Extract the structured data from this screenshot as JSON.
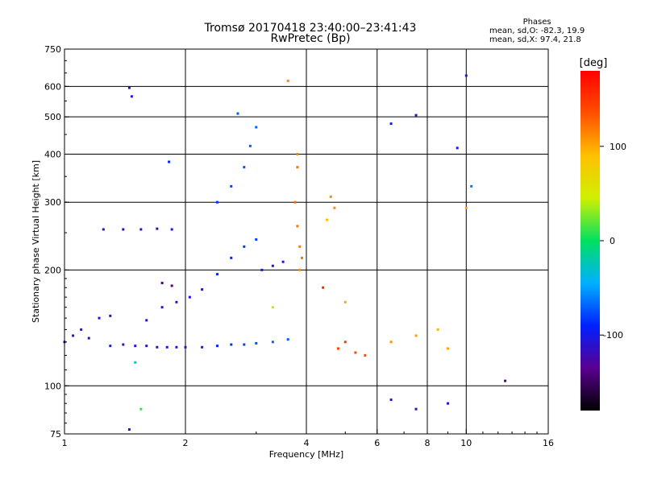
{
  "chart_data": {
    "type": "scatter",
    "title": "Tromsø 20170418 23:40:00–23:41:43",
    "subtitle": "RwPretec (Bp)",
    "xlabel": "Frequency [MHz]",
    "ylabel": "Stationary phase Virtual Height [km]",
    "x_scale": "log",
    "y_scale": "log",
    "xlim": [
      1,
      16
    ],
    "ylim": [
      75,
      750
    ],
    "x_ticks": [
      1,
      2,
      4,
      6,
      8,
      10,
      16
    ],
    "x_grid": [
      2,
      4,
      6,
      8,
      10
    ],
    "y_ticks": [
      75,
      100,
      200,
      300,
      400,
      500,
      600,
      750
    ],
    "grid": true,
    "stats": {
      "header": "Phases",
      "line_o": "mean, sd,O: -82.3, 19.9",
      "line_x": "mean, sd,X: 97.4, 21.8"
    },
    "colorbar": {
      "label": "[deg]",
      "range": [
        -180,
        180
      ],
      "ticks": [
        -100,
        0,
        100
      ],
      "colors": [
        "#000000",
        "#5a0090",
        "#0020ff",
        "#00b0ff",
        "#00e060",
        "#d0f000",
        "#ffc000",
        "#ff5000",
        "#ff0000"
      ]
    },
    "series": [
      {
        "points": [
          {
            "x": 1.0,
            "y": 130,
            "p": -110
          },
          {
            "x": 1.05,
            "y": 135,
            "p": -108
          },
          {
            "x": 1.1,
            "y": 140,
            "p": -100
          },
          {
            "x": 1.15,
            "y": 133,
            "p": -112
          },
          {
            "x": 1.22,
            "y": 150,
            "p": -105
          },
          {
            "x": 1.3,
            "y": 152,
            "p": -110
          },
          {
            "x": 1.3,
            "y": 127,
            "p": -100
          },
          {
            "x": 1.4,
            "y": 128,
            "p": -115
          },
          {
            "x": 1.5,
            "y": 127,
            "p": -108
          },
          {
            "x": 1.6,
            "y": 127,
            "p": -112
          },
          {
            "x": 1.7,
            "y": 126,
            "p": -105
          },
          {
            "x": 1.8,
            "y": 126,
            "p": -110
          },
          {
            "x": 1.9,
            "y": 126,
            "p": -100
          },
          {
            "x": 2.0,
            "y": 126,
            "p": -104
          },
          {
            "x": 2.2,
            "y": 126,
            "p": -95
          },
          {
            "x": 2.4,
            "y": 127,
            "p": -90
          },
          {
            "x": 2.6,
            "y": 128,
            "p": -85
          },
          {
            "x": 2.8,
            "y": 128,
            "p": -80
          },
          {
            "x": 3.0,
            "y": 129,
            "p": -75
          },
          {
            "x": 3.3,
            "y": 130,
            "p": -70
          },
          {
            "x": 3.6,
            "y": 132,
            "p": -72
          },
          {
            "x": 1.25,
            "y": 255,
            "p": -110
          },
          {
            "x": 1.4,
            "y": 255,
            "p": -108
          },
          {
            "x": 1.55,
            "y": 255,
            "p": -112
          },
          {
            "x": 1.7,
            "y": 256,
            "p": -105
          },
          {
            "x": 1.85,
            "y": 255,
            "p": -100
          },
          {
            "x": 1.45,
            "y": 595,
            "p": -112
          },
          {
            "x": 1.47,
            "y": 565,
            "p": -106
          },
          {
            "x": 1.82,
            "y": 382,
            "p": -90
          },
          {
            "x": 1.75,
            "y": 185,
            "p": -140
          },
          {
            "x": 1.85,
            "y": 182,
            "p": -138
          },
          {
            "x": 1.6,
            "y": 148,
            "p": -120
          },
          {
            "x": 1.75,
            "y": 160,
            "p": -118
          },
          {
            "x": 1.9,
            "y": 165,
            "p": -112
          },
          {
            "x": 2.05,
            "y": 170,
            "p": -108
          },
          {
            "x": 2.2,
            "y": 178,
            "p": -100
          },
          {
            "x": 2.4,
            "y": 195,
            "p": -92
          },
          {
            "x": 2.6,
            "y": 215,
            "p": -88
          },
          {
            "x": 2.8,
            "y": 230,
            "p": -82
          },
          {
            "x": 3.0,
            "y": 240,
            "p": -80
          },
          {
            "x": 2.4,
            "y": 300,
            "p": -85
          },
          {
            "x": 2.6,
            "y": 330,
            "p": -78
          },
          {
            "x": 2.8,
            "y": 370,
            "p": -75
          },
          {
            "x": 2.9,
            "y": 420,
            "p": -70
          },
          {
            "x": 3.0,
            "y": 470,
            "p": -68
          },
          {
            "x": 2.7,
            "y": 510,
            "p": -72
          },
          {
            "x": 3.1,
            "y": 200,
            "p": -90
          },
          {
            "x": 3.3,
            "y": 205,
            "p": -110
          },
          {
            "x": 3.5,
            "y": 210,
            "p": -95
          },
          {
            "x": 3.3,
            "y": 160,
            "p": 40
          },
          {
            "x": 3.6,
            "y": 620,
            "p": 110
          },
          {
            "x": 3.8,
            "y": 400,
            "p": 115
          },
          {
            "x": 3.8,
            "y": 370,
            "p": 120
          },
          {
            "x": 3.75,
            "y": 300,
            "p": 125
          },
          {
            "x": 3.8,
            "y": 260,
            "p": 120
          },
          {
            "x": 3.85,
            "y": 230,
            "p": 118
          },
          {
            "x": 3.9,
            "y": 215,
            "p": 122
          },
          {
            "x": 3.85,
            "y": 200,
            "p": 110
          },
          {
            "x": 4.6,
            "y": 310,
            "p": 110
          },
          {
            "x": 4.7,
            "y": 290,
            "p": 112
          },
          {
            "x": 4.5,
            "y": 270,
            "p": 90
          },
          {
            "x": 4.8,
            "y": 125,
            "p": 145
          },
          {
            "x": 5.0,
            "y": 130,
            "p": 150
          },
          {
            "x": 5.3,
            "y": 122,
            "p": 140
          },
          {
            "x": 5.6,
            "y": 120,
            "p": 135
          },
          {
            "x": 4.4,
            "y": 180,
            "p": 160
          },
          {
            "x": 5.0,
            "y": 165,
            "p": 100
          },
          {
            "x": 6.5,
            "y": 130,
            "p": 110
          },
          {
            "x": 7.5,
            "y": 135,
            "p": 105
          },
          {
            "x": 8.5,
            "y": 140,
            "p": 95
          },
          {
            "x": 9.0,
            "y": 125,
            "p": 100
          },
          {
            "x": 10.0,
            "y": 640,
            "p": -100
          },
          {
            "x": 6.5,
            "y": 480,
            "p": -100
          },
          {
            "x": 7.5,
            "y": 505,
            "p": -110
          },
          {
            "x": 9.5,
            "y": 415,
            "p": -105
          },
          {
            "x": 10.3,
            "y": 330,
            "p": -60
          },
          {
            "x": 10.0,
            "y": 290,
            "p": 100
          },
          {
            "x": 12.5,
            "y": 103,
            "p": -130
          },
          {
            "x": 1.5,
            "y": 115,
            "p": -20
          },
          {
            "x": 1.55,
            "y": 87,
            "p": 10
          },
          {
            "x": 1.45,
            "y": 77,
            "p": -112
          },
          {
            "x": 6.5,
            "y": 92,
            "p": -108
          },
          {
            "x": 7.5,
            "y": 87,
            "p": -110
          },
          {
            "x": 9.0,
            "y": 90,
            "p": -105
          }
        ]
      }
    ]
  }
}
